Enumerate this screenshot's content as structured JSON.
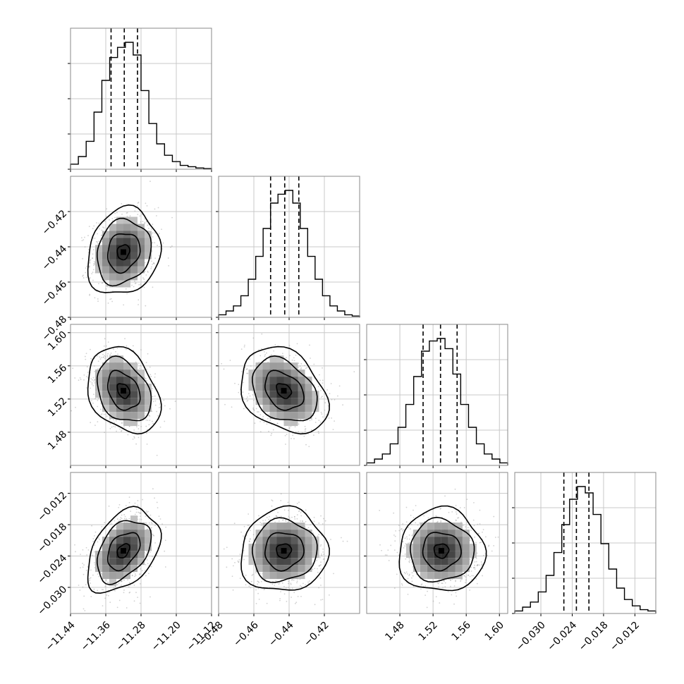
{
  "chart_data": {
    "type": "corner",
    "title": "",
    "grid": true,
    "quantiles": [
      0.16,
      0.5,
      0.84
    ],
    "params": [
      {
        "range": [
          -11.44,
          -11.12
        ],
        "ticks": [
          "-11.44",
          "-11.36",
          "-11.28",
          "-11.20",
          "-11.12"
        ],
        "quantile_values": [
          -11.348,
          -11.318,
          -11.288
        ],
        "hist_counts": [
          0.04,
          0.1,
          0.22,
          0.45,
          0.7,
          0.88,
          0.96,
          1.0,
          0.9,
          0.62,
          0.36,
          0.2,
          0.11,
          0.06,
          0.03,
          0.02,
          0.01,
          0.005
        ]
      },
      {
        "range": [
          -0.48,
          -0.4
        ],
        "ticks": [
          "-0.48",
          "-0.46",
          "-0.44",
          "-0.42"
        ],
        "quantile_values": [
          -0.4505,
          -0.4425,
          -0.4345
        ],
        "hist_counts": [
          0.02,
          0.05,
          0.09,
          0.17,
          0.3,
          0.48,
          0.7,
          0.9,
          0.97,
          1.0,
          0.9,
          0.7,
          0.48,
          0.3,
          0.17,
          0.09,
          0.05,
          0.02,
          0.01
        ]
      },
      {
        "range": [
          1.44,
          1.61
        ],
        "ticks": [
          "1.48",
          "1.52",
          "1.56",
          "1.60"
        ],
        "quantile_values": [
          1.508,
          1.529,
          1.549
        ],
        "hist_counts": [
          0.02,
          0.05,
          0.09,
          0.17,
          0.3,
          0.48,
          0.7,
          0.9,
          0.98,
          1.0,
          0.92,
          0.72,
          0.48,
          0.3,
          0.17,
          0.09,
          0.05,
          0.02
        ]
      },
      {
        "range": [
          -0.035,
          -0.008
        ],
        "ticks": [
          "-0.030",
          "-0.024",
          "-0.018",
          "-0.012"
        ],
        "quantile_values": [
          -0.0256,
          -0.0232,
          -0.0208
        ],
        "hist_counts": [
          0.02,
          0.05,
          0.09,
          0.17,
          0.3,
          0.48,
          0.7,
          0.9,
          1.0,
          0.95,
          0.78,
          0.55,
          0.35,
          0.2,
          0.11,
          0.06,
          0.03,
          0.02
        ]
      }
    ],
    "pairs": [
      {
        "row": 1,
        "col": 0,
        "center": [
          -11.32,
          -0.443
        ],
        "spread": [
          0.035,
          0.0105
        ],
        "rho": 0.15
      },
      {
        "row": 2,
        "col": 0,
        "center": [
          -11.32,
          1.53
        ],
        "spread": [
          0.035,
          0.022
        ],
        "rho": -0.3
      },
      {
        "row": 2,
        "col": 1,
        "center": [
          -0.443,
          1.53
        ],
        "spread": [
          0.0105,
          0.022
        ],
        "rho": -0.3
      },
      {
        "row": 3,
        "col": 0,
        "center": [
          -11.32,
          -0.023
        ],
        "spread": [
          0.035,
          0.0034
        ],
        "rho": 0.4
      },
      {
        "row": 3,
        "col": 1,
        "center": [
          -0.443,
          -0.023
        ],
        "spread": [
          0.0105,
          0.0034
        ],
        "rho": 0.05
      },
      {
        "row": 3,
        "col": 2,
        "center": [
          1.53,
          -0.023
        ],
        "spread": [
          0.022,
          0.0034
        ],
        "rho": 0.0
      }
    ]
  }
}
